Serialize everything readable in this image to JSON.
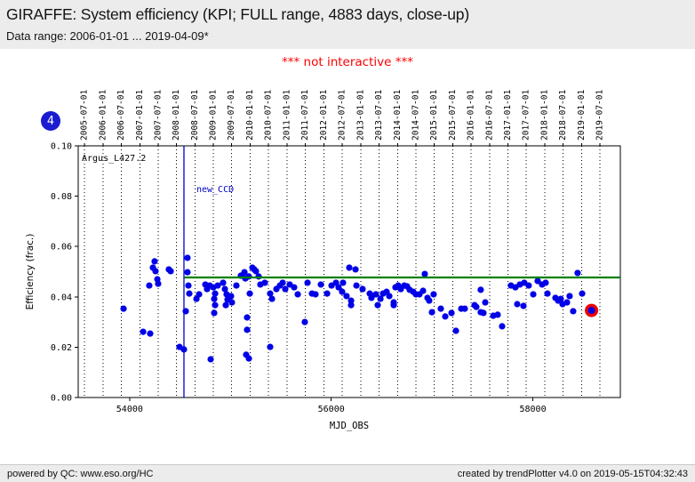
{
  "header": {
    "title": "GIRAFFE: System efficiency (KPI; FULL range, 4883 days, close-up)",
    "data_range": "Data range: 2006-01-01 ... 2019-04-09*"
  },
  "note": "*** not interactive ***",
  "badge": "4",
  "colors": {
    "note_red": "#ff0000",
    "badge_blue": "#1b1bd1",
    "point_blue": "#0000e6",
    "reference_green": "#008000",
    "event_blue": "#0000cc",
    "highlight_red": "#ee0000",
    "header_gray": "#ececec"
  },
  "footer": {
    "left": "powered by QC: www.eso.org/HC",
    "right": "created by trendPlotter v4.0 on 2019-05-15T04:32:43"
  },
  "chart_data": {
    "type": "scatter",
    "xlabel": "MJD_OBS",
    "ylabel": "Efficiency (frac.)",
    "series_label": "Argus_L427.2",
    "grid": "vertical-dotted",
    "legend_position": "none",
    "xlim_mjd": [
      53490,
      58868
    ],
    "ylim": [
      0,
      0.1
    ],
    "x_ticks_bottom": [
      54000,
      56000,
      58000
    ],
    "y_ticks": [
      0.0,
      0.02,
      0.04,
      0.06,
      0.08,
      0.1
    ],
    "top_date_ticks": [
      "2005-07-01",
      "2006-01-01",
      "2006-07-01",
      "2007-01-01",
      "2007-07-01",
      "2008-01-01",
      "2008-07-01",
      "2009-01-01",
      "2009-07-01",
      "2010-01-01",
      "2010-07-01",
      "2011-01-01",
      "2011-07-01",
      "2012-01-01",
      "2012-07-01",
      "2013-01-01",
      "2013-07-01",
      "2014-01-01",
      "2014-07-01",
      "2015-01-01",
      "2015-07-01",
      "2016-01-01",
      "2016-07-01",
      "2017-01-01",
      "2017-07-01",
      "2018-01-01",
      "2018-07-01",
      "2019-01-01",
      "2019-07-01"
    ],
    "reference_line": {
      "value": 0.0477,
      "start_mjd": 54545
    },
    "event_line": {
      "label": "new_CCD",
      "mjd": 54539
    },
    "highlight_point": {
      "mjd": 58582,
      "value": 0.0346
    },
    "points": [
      [
        53940,
        0.0353
      ],
      [
        54134,
        0.0261
      ],
      [
        54204,
        0.0254
      ],
      [
        54195,
        0.0445
      ],
      [
        54231,
        0.0516
      ],
      [
        54248,
        0.0541
      ],
      [
        54257,
        0.0502
      ],
      [
        54275,
        0.047
      ],
      [
        54283,
        0.0452
      ],
      [
        54389,
        0.0509
      ],
      [
        54407,
        0.0502
      ],
      [
        54495,
        0.0201
      ],
      [
        54539,
        0.0191
      ],
      [
        54557,
        0.0343
      ],
      [
        54574,
        0.0555
      ],
      [
        54574,
        0.0498
      ],
      [
        54583,
        0.0445
      ],
      [
        54592,
        0.0413
      ],
      [
        54663,
        0.0392
      ],
      [
        54689,
        0.041
      ],
      [
        54751,
        0.0449
      ],
      [
        54768,
        0.0431
      ],
      [
        54795,
        0.0445
      ],
      [
        54804,
        0.0152
      ],
      [
        54830,
        0.0438
      ],
      [
        54839,
        0.0392
      ],
      [
        54839,
        0.0336
      ],
      [
        54848,
        0.0413
      ],
      [
        54848,
        0.0367
      ],
      [
        54874,
        0.0445
      ],
      [
        54927,
        0.0456
      ],
      [
        54945,
        0.0431
      ],
      [
        54954,
        0.0367
      ],
      [
        54962,
        0.041
      ],
      [
        54971,
        0.0389
      ],
      [
        55006,
        0.0403
      ],
      [
        55015,
        0.0378
      ],
      [
        55059,
        0.0445
      ],
      [
        55103,
        0.0484
      ],
      [
        55139,
        0.0498
      ],
      [
        55148,
        0.0473
      ],
      [
        55156,
        0.017
      ],
      [
        55165,
        0.0318
      ],
      [
        55165,
        0.0269
      ],
      [
        55183,
        0.0481
      ],
      [
        55183,
        0.0155
      ],
      [
        55192,
        0.0413
      ],
      [
        55218,
        0.0516
      ],
      [
        55236,
        0.0509
      ],
      [
        55253,
        0.0502
      ],
      [
        55280,
        0.0481
      ],
      [
        55297,
        0.0449
      ],
      [
        55341,
        0.0456
      ],
      [
        55394,
        0.0413
      ],
      [
        55394,
        0.0201
      ],
      [
        55412,
        0.0392
      ],
      [
        55456,
        0.0431
      ],
      [
        55491,
        0.0445
      ],
      [
        55518,
        0.0456
      ],
      [
        55544,
        0.0431
      ],
      [
        55588,
        0.0449
      ],
      [
        55632,
        0.0438
      ],
      [
        55668,
        0.041
      ],
      [
        55738,
        0.03
      ],
      [
        55765,
        0.0456
      ],
      [
        55809,
        0.0413
      ],
      [
        55844,
        0.041
      ],
      [
        55897,
        0.0449
      ],
      [
        55959,
        0.0413
      ],
      [
        56003,
        0.0445
      ],
      [
        56047,
        0.0456
      ],
      [
        56073,
        0.0438
      ],
      [
        56108,
        0.042
      ],
      [
        56117,
        0.0456
      ],
      [
        56152,
        0.0403
      ],
      [
        56179,
        0.0516
      ],
      [
        56197,
        0.0385
      ],
      [
        56197,
        0.0367
      ],
      [
        56241,
        0.0509
      ],
      [
        56250,
        0.0445
      ],
      [
        56311,
        0.0431
      ],
      [
        56382,
        0.0413
      ],
      [
        56399,
        0.0396
      ],
      [
        56443,
        0.041
      ],
      [
        56461,
        0.0367
      ],
      [
        56488,
        0.0392
      ],
      [
        56514,
        0.0413
      ],
      [
        56549,
        0.042
      ],
      [
        56576,
        0.0403
      ],
      [
        56620,
        0.0378
      ],
      [
        56620,
        0.0367
      ],
      [
        56637,
        0.0438
      ],
      [
        56664,
        0.0445
      ],
      [
        56690,
        0.0431
      ],
      [
        56725,
        0.0445
      ],
      [
        56752,
        0.0442
      ],
      [
        56778,
        0.0428
      ],
      [
        56814,
        0.042
      ],
      [
        56840,
        0.041
      ],
      [
        56875,
        0.041
      ],
      [
        56911,
        0.0424
      ],
      [
        56928,
        0.0491
      ],
      [
        56955,
        0.0396
      ],
      [
        56972,
        0.0385
      ],
      [
        56999,
        0.0339
      ],
      [
        57016,
        0.041
      ],
      [
        57087,
        0.0353
      ],
      [
        57131,
        0.0322
      ],
      [
        57193,
        0.0336
      ],
      [
        57237,
        0.0265
      ],
      [
        57290,
        0.0353
      ],
      [
        57325,
        0.0353
      ],
      [
        57422,
        0.0367
      ],
      [
        57439,
        0.036
      ],
      [
        57483,
        0.0428
      ],
      [
        57483,
        0.0339
      ],
      [
        57510,
        0.0336
      ],
      [
        57528,
        0.0378
      ],
      [
        57607,
        0.0325
      ],
      [
        57651,
        0.0329
      ],
      [
        57695,
        0.0283
      ],
      [
        57783,
        0.0445
      ],
      [
        57827,
        0.0438
      ],
      [
        57845,
        0.0371
      ],
      [
        57871,
        0.0449
      ],
      [
        57907,
        0.0364
      ],
      [
        57915,
        0.0456
      ],
      [
        57959,
        0.0445
      ],
      [
        58004,
        0.041
      ],
      [
        58048,
        0.0463
      ],
      [
        58092,
        0.0449
      ],
      [
        58127,
        0.0456
      ],
      [
        58145,
        0.0413
      ],
      [
        58224,
        0.0396
      ],
      [
        58251,
        0.0385
      ],
      [
        58277,
        0.0392
      ],
      [
        58295,
        0.0371
      ],
      [
        58339,
        0.0378
      ],
      [
        58365,
        0.0403
      ],
      [
        58400,
        0.0343
      ],
      [
        58444,
        0.0495
      ],
      [
        58489,
        0.0413
      ]
    ]
  }
}
